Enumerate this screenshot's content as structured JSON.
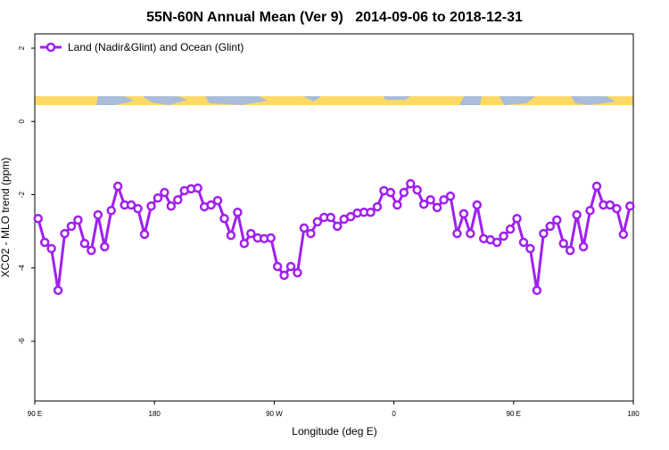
{
  "chart_data": {
    "type": "line",
    "title": "55N-60N Annual Mean (Ver 9)   2014-09-06 to 2018-12-31",
    "x_label": "Longitude (deg E)",
    "y_label": "XCO2 - MLO trend (ppm)",
    "x": [
      92.5,
      97.5,
      102.5,
      107.5,
      112.5,
      117.5,
      122.5,
      127.5,
      132.5,
      137.5,
      142.5,
      147.5,
      152.5,
      157.5,
      162.5,
      167.5,
      172.5,
      177.5,
      182.5,
      187.5,
      192.5,
      197.5,
      202.5,
      207.5,
      212.5,
      217.5,
      222.5,
      227.5,
      232.5,
      237.5,
      242.5,
      247.5,
      252.5,
      257.5,
      262.5,
      267.5,
      272.5,
      277.5,
      282.5,
      287.5,
      292.5,
      297.5,
      302.5,
      307.5,
      312.5,
      317.5,
      322.5,
      327.5,
      332.5,
      337.5,
      342.5,
      347.5,
      352.5,
      357.5,
      362.5,
      367.5,
      372.5,
      377.5,
      382.5,
      387.5,
      392.5,
      397.5,
      402.5,
      407.5,
      412.5,
      417.5,
      422.5,
      427.5,
      432.5,
      437.5,
      442.5,
      447.5,
      452.5,
      457.5,
      462.5,
      467.5,
      472.5,
      477.5,
      482.5,
      487.5,
      492.5,
      497.5,
      502.5,
      507.5,
      512.5,
      517.5,
      522.5,
      527.5,
      532.5,
      537.5
    ],
    "series": [
      {
        "name": "Land (Nadir&Glint) and Ocean (Glint)",
        "color": "#a020f0",
        "values": [
          -2.65,
          -3.3,
          -3.47,
          -4.61,
          -3.06,
          -2.86,
          -2.69,
          -3.33,
          -3.52,
          -2.55,
          -3.42,
          -2.43,
          -1.77,
          -2.28,
          -2.28,
          -2.38,
          -3.08,
          -2.31,
          -2.09,
          -1.94,
          -2.31,
          -2.14,
          -1.89,
          -1.84,
          -1.82,
          -2.33,
          -2.28,
          -2.16,
          -2.65,
          -3.11,
          -2.48,
          -3.33,
          -3.06,
          -3.18,
          -3.2,
          -3.18,
          -3.96,
          -4.2,
          -3.96,
          -4.13,
          -2.91,
          -3.06,
          -2.74,
          -2.62,
          -2.62,
          -2.86,
          -2.67,
          -2.6,
          -2.5,
          -2.48,
          -2.48,
          -2.33,
          -1.89,
          -1.94,
          -2.28,
          -1.94,
          -1.7,
          -1.87,
          -2.26,
          -2.14,
          -2.35,
          -2.14,
          -2.04,
          -3.06,
          -2.52,
          -3.06,
          -2.28,
          -3.2,
          -3.23,
          -3.3,
          -3.13,
          -2.94,
          -2.65,
          -3.3,
          -3.47,
          -4.61,
          -3.06,
          -2.86,
          -2.69,
          -3.33,
          -3.52,
          -2.55,
          -3.42,
          -2.43,
          -1.77,
          -2.28,
          -2.28,
          -2.38,
          -3.08,
          -2.31
        ]
      }
    ],
    "xlim": [
      90,
      540
    ],
    "xticks": [
      {
        "value": 90,
        "label": "90 E"
      },
      180,
      {
        "value": 270,
        "label": "90 W"
      },
      {
        "value": 360,
        "label": "0"
      },
      {
        "value": 450,
        "label": "90 E"
      },
      {
        "value": 540,
        "label": "180"
      }
    ],
    "ylim": [
      -7.63,
      2.39
    ],
    "yticks": [
      2,
      0,
      -2,
      -4,
      -6
    ],
    "legend": "top-left"
  }
}
